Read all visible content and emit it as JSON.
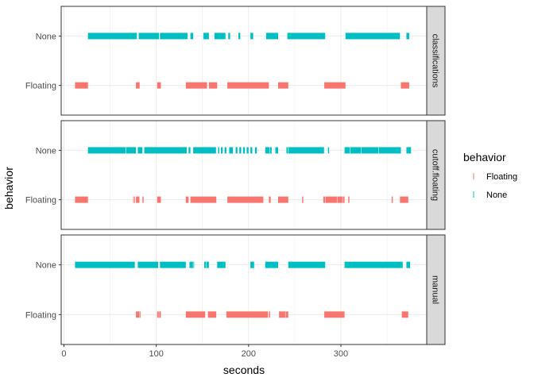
{
  "chart_data": {
    "type": "faceted-event-timeline",
    "xlabel": "seconds",
    "ylabel": "behavior",
    "xlim": [
      -3,
      393
    ],
    "x_ticks": [
      0,
      100,
      200,
      300
    ],
    "categories": [
      "None",
      "Floating"
    ],
    "grid": true,
    "legend": {
      "title": "behavior",
      "position": "right",
      "entries": [
        {
          "label": "Floating",
          "color": "#F8766D"
        },
        {
          "label": "None",
          "color": "#00BFC4"
        }
      ]
    },
    "colors": {
      "Floating": "#F8766D",
      "None": "#00BFC4"
    },
    "facets": [
      {
        "label": "classifications",
        "none": [
          [
            26,
            79
          ],
          [
            81,
            103
          ],
          [
            104,
            134
          ],
          [
            137,
            140
          ],
          [
            151,
            157
          ],
          [
            163,
            175
          ],
          [
            178,
            180
          ],
          [
            189,
            191
          ],
          [
            202,
            205
          ],
          [
            219,
            232
          ],
          [
            242,
            283
          ],
          [
            305,
            364
          ],
          [
            371,
            374
          ]
        ],
        "floating": [
          [
            12,
            26
          ],
          [
            78,
            82
          ],
          [
            101,
            105
          ],
          [
            132,
            155
          ],
          [
            157,
            166
          ],
          [
            177,
            222
          ],
          [
            232,
            243
          ],
          [
            282,
            305
          ],
          [
            365,
            374
          ]
        ]
      },
      {
        "label": "cutoff.floating",
        "none": [
          [
            26,
            78
          ],
          [
            80,
            85
          ],
          [
            87,
            133
          ],
          [
            135,
            137
          ],
          [
            140,
            165
          ],
          [
            167,
            168
          ],
          [
            170,
            172
          ],
          [
            174,
            176
          ],
          [
            179,
            183
          ],
          [
            186,
            188
          ],
          [
            190,
            192
          ],
          [
            194,
            196
          ],
          [
            198,
            200
          ],
          [
            202,
            204
          ],
          [
            207,
            209
          ],
          [
            218,
            225
          ],
          [
            229,
            232
          ],
          [
            241,
            282
          ],
          [
            286,
            287
          ],
          [
            304,
            365
          ],
          [
            371,
            376
          ]
        ],
        "floating": [
          [
            12,
            26
          ],
          [
            75,
            77
          ],
          [
            78,
            82
          ],
          [
            85,
            86
          ],
          [
            101,
            105
          ],
          [
            132,
            135
          ],
          [
            137,
            165
          ],
          [
            177,
            216
          ],
          [
            222,
            224
          ],
          [
            232,
            243
          ],
          [
            258,
            259
          ],
          [
            281,
            304
          ],
          [
            308,
            309
          ],
          [
            355,
            356
          ],
          [
            364,
            373
          ]
        ],
        "none_ticks": [
          67,
          134,
          165,
          223,
          243,
          282,
          310,
          322,
          341
        ],
        "floating_ticks": [
          76,
          82,
          283,
          296,
          302
        ]
      },
      {
        "label": "manual",
        "none": [
          [
            12,
            77
          ],
          [
            80,
            102
          ],
          [
            104,
            132
          ],
          [
            136,
            141
          ],
          [
            152,
            157
          ],
          [
            166,
            175
          ],
          [
            202,
            206
          ],
          [
            218,
            232
          ],
          [
            243,
            283
          ],
          [
            304,
            367
          ],
          [
            371,
            375
          ]
        ],
        "floating": [
          [
            78,
            83
          ],
          [
            101,
            105
          ],
          [
            132,
            153
          ],
          [
            156,
            165
          ],
          [
            176,
            221
          ],
          [
            222,
            223
          ],
          [
            233,
            243
          ],
          [
            282,
            304
          ],
          [
            366,
            373
          ]
        ],
        "none_ticks": [
          77,
          140,
          154
        ],
        "floating_ticks": [
          82,
          103,
          240
        ]
      }
    ]
  }
}
